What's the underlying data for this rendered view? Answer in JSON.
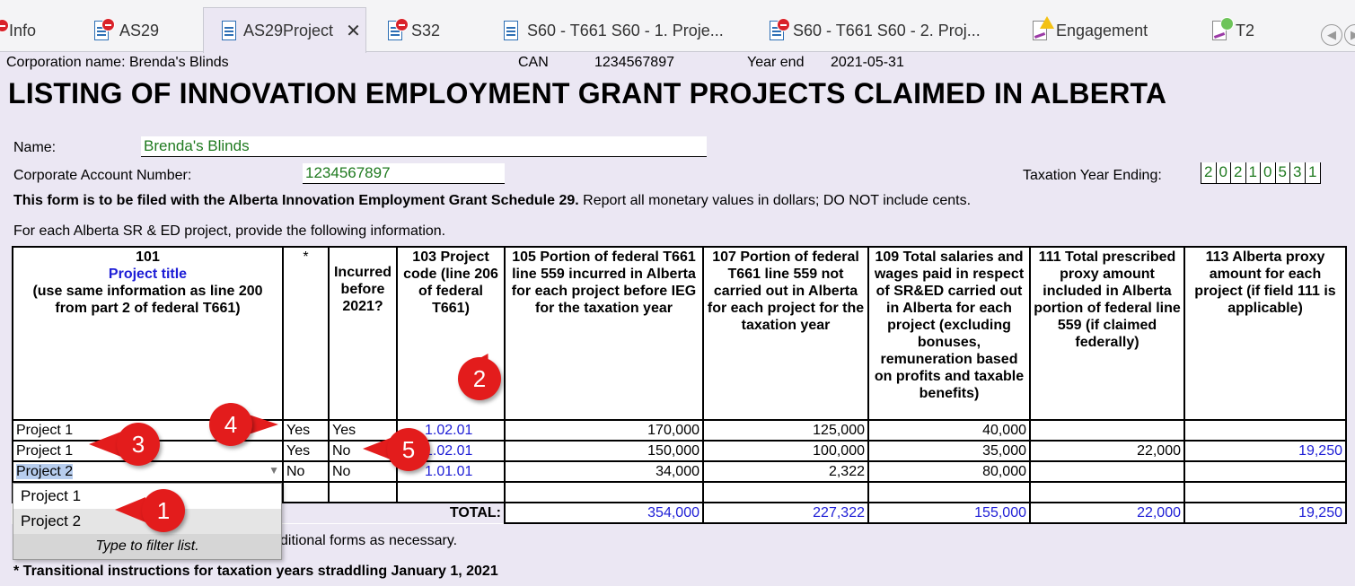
{
  "tabs": [
    {
      "label": "Info",
      "icon": "error"
    },
    {
      "label": "AS29",
      "icon": "error"
    },
    {
      "label": "AS29Project",
      "icon": "doc",
      "active": true
    },
    {
      "label": "S32",
      "icon": "error"
    },
    {
      "label": "S60 - T661 S60 - 1. Proje...",
      "icon": "doc"
    },
    {
      "label": "S60 - T661 S60 - 2. Proj...",
      "icon": "error"
    },
    {
      "label": "Engagement",
      "icon": "warning"
    },
    {
      "label": "T2",
      "icon": "ok"
    }
  ],
  "header": {
    "corp_label": "Corporation name: Brenda's Blinds",
    "can_label": "CAN",
    "can_value": "1234567897",
    "ye_label": "Year end",
    "ye_value": "2021-05-31"
  },
  "form": {
    "title": "LISTING OF INNOVATION EMPLOYMENT GRANT PROJECTS CLAIMED IN ALBERTA",
    "name_label": "Name:",
    "name_value": "Brenda's Blinds",
    "can_label": "Corporate Account Number:",
    "can_value": "1234567897",
    "tye_label": "Taxation Year Ending:",
    "tye_digits": [
      "2",
      "0",
      "2",
      "1",
      "0",
      "5",
      "3",
      "1"
    ],
    "filed_bold": "This form is to be filed with the Alberta Innovation Employment Grant Schedule 29.",
    "filed_rest": " Report all monetary values in dollars; DO NOT include cents.",
    "each_project": "For each Alberta SR & ED project, provide the following information.",
    "additional_forms": "ditional forms as necessary.",
    "transitional": "* Transitional instructions for taxation years straddling January 1, 2021"
  },
  "table": {
    "headers": {
      "c101_num": "101",
      "c101_blue": "Project title",
      "c101_rest": "(use same information as line 200 from part 2 of federal T661)",
      "c_star": "*",
      "c_incurred": "Incurred before 2021?",
      "c103": "103\nProject code (line 206 of federal T661)",
      "c105": "105\nPortion of federal T661 line 559 incurred in Alberta for each project before IEG for the taxation year",
      "c107": "107\nPortion of federal T661 line 559 not carried out in Alberta for each project for the taxation year",
      "c109": "109\nTotal salaries and wages paid in respect of SR&ED carried out in Alberta for each project (excluding bonuses, remuneration based on profits and taxable benefits)",
      "c111": "111\nTotal prescribed proxy amount included in Alberta portion of federal line 559 (if claimed federally)",
      "c113": "113\nAlberta proxy amount for each project (if field 111 is applicable)"
    },
    "rows": [
      {
        "title": "Project 1",
        "star": "Yes",
        "incurred": "Yes",
        "code": "1.02.01",
        "c105": "170,000",
        "c107": "125,000",
        "c109": "40,000",
        "c111": "",
        "c113": ""
      },
      {
        "title": "Project 1",
        "star": "Yes",
        "incurred": "No",
        "code": "1.02.01",
        "c105": "150,000",
        "c107": "100,000",
        "c109": "35,000",
        "c111": "22,000",
        "c113": "19,250"
      },
      {
        "title": "Project 2",
        "star": "No",
        "incurred": "No",
        "code": "1.01.01",
        "c105": "34,000",
        "c107": "2,322",
        "c109": "80,000",
        "c111": "",
        "c113": ""
      }
    ],
    "total_label": "TOTAL:",
    "totals": {
      "c105": "354,000",
      "c107": "227,322",
      "c109": "155,000",
      "c111": "22,000",
      "c113": "19,250"
    }
  },
  "dropdown": {
    "options": [
      "Project 1",
      "Project 2"
    ],
    "hint": "Type to filter list."
  },
  "callouts": [
    "1",
    "2",
    "3",
    "4",
    "5"
  ],
  "colors": {
    "link": "#1d1dd6",
    "field_text": "#1f7a1f",
    "callout": "#e31c1c",
    "background": "#ebe7f3"
  }
}
